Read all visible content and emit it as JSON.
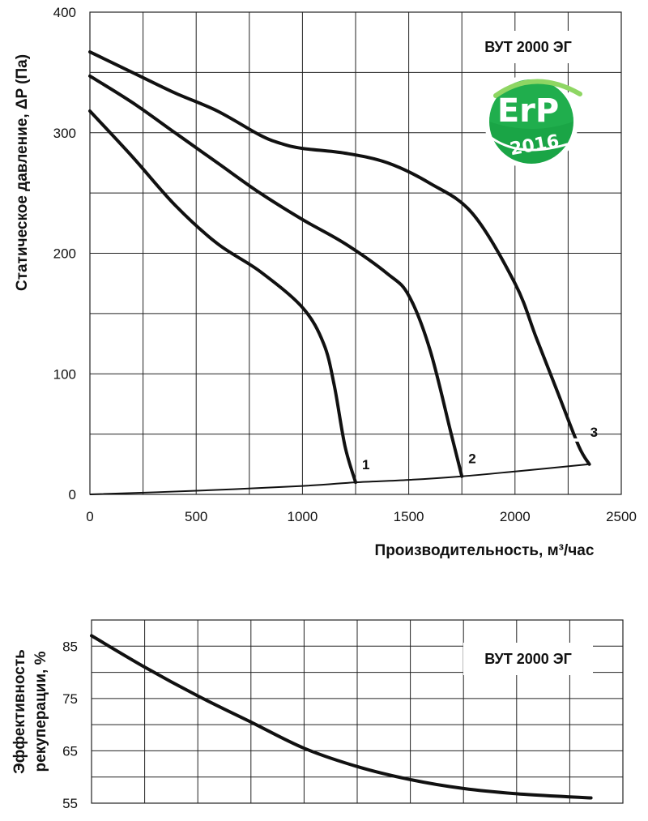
{
  "chart_data": [
    {
      "type": "line",
      "title": "",
      "box_label": "ВУТ 2000 ЭГ",
      "xlabel": "Производительность, м³/час",
      "ylabel": "Статическое давление, ΔP (Па)",
      "xlim": [
        0,
        2500
      ],
      "ylim": [
        0,
        400
      ],
      "x_ticks": [
        0,
        500,
        1000,
        1500,
        2000,
        2500
      ],
      "y_ticks": [
        0,
        100,
        200,
        300,
        400
      ],
      "x_tick_labels": [
        "0",
        "500",
        "1000",
        "1500",
        "2000",
        "2500"
      ],
      "y_tick_labels": [
        "0",
        "100",
        "200",
        "300",
        "400"
      ],
      "grid": true,
      "series": [
        {
          "name": "1",
          "points": [
            [
              0,
              318
            ],
            [
              200,
              280
            ],
            [
              400,
              240
            ],
            [
              600,
              208
            ],
            [
              800,
              185
            ],
            [
              1000,
              155
            ],
            [
              1100,
              125
            ],
            [
              1150,
              90
            ],
            [
              1200,
              40
            ],
            [
              1250,
              10
            ]
          ]
        },
        {
          "name": "2",
          "points": [
            [
              0,
              347
            ],
            [
              200,
              325
            ],
            [
              400,
              300
            ],
            [
              600,
              275
            ],
            [
              800,
              250
            ],
            [
              1000,
              228
            ],
            [
              1200,
              208
            ],
            [
              1400,
              183
            ],
            [
              1500,
              165
            ],
            [
              1600,
              120
            ],
            [
              1700,
              50
            ],
            [
              1750,
              15
            ]
          ]
        },
        {
          "name": "3",
          "points": [
            [
              0,
              367
            ],
            [
              200,
              350
            ],
            [
              400,
              333
            ],
            [
              600,
              318
            ],
            [
              800,
              298
            ],
            [
              900,
              291
            ],
            [
              1000,
              287
            ],
            [
              1200,
              283
            ],
            [
              1400,
              275
            ],
            [
              1600,
              258
            ],
            [
              1800,
              233
            ],
            [
              2000,
              175
            ],
            [
              2100,
              130
            ],
            [
              2200,
              85
            ],
            [
              2300,
              40
            ],
            [
              2350,
              25
            ]
          ]
        },
        {
          "name": "",
          "points": [
            [
              0,
              0
            ],
            [
              500,
              3
            ],
            [
              1000,
              7
            ],
            [
              1250,
              10
            ],
            [
              1500,
              12
            ],
            [
              1750,
              15
            ],
            [
              2000,
              19
            ],
            [
              2350,
              25
            ]
          ]
        }
      ],
      "badge": {
        "line1": "ErP",
        "line2": "2016",
        "colors": {
          "green": "#1aa546",
          "dark_green": "#0e7e33",
          "light_green": "#8ed663"
        }
      }
    },
    {
      "type": "line",
      "title": "",
      "box_label": "ВУТ 2000 ЭГ",
      "xlabel": "",
      "ylabel_line1": "Эффективность",
      "ylabel_line2": "рекуперации, %",
      "xlim": [
        0,
        2500
      ],
      "ylim": [
        55,
        90
      ],
      "y_ticks": [
        55,
        65,
        75,
        85
      ],
      "y_tick_labels": [
        "55",
        "65",
        "75",
        "85"
      ],
      "grid": true,
      "series": [
        {
          "name": "",
          "points": [
            [
              0,
              87
            ],
            [
              250,
              81
            ],
            [
              500,
              75.5
            ],
            [
              750,
              70.5
            ],
            [
              1000,
              65.5
            ],
            [
              1250,
              62
            ],
            [
              1500,
              59.5
            ],
            [
              1750,
              57.8
            ],
            [
              2000,
              56.8
            ],
            [
              2250,
              56.2
            ],
            [
              2350,
              56
            ]
          ]
        }
      ]
    }
  ]
}
